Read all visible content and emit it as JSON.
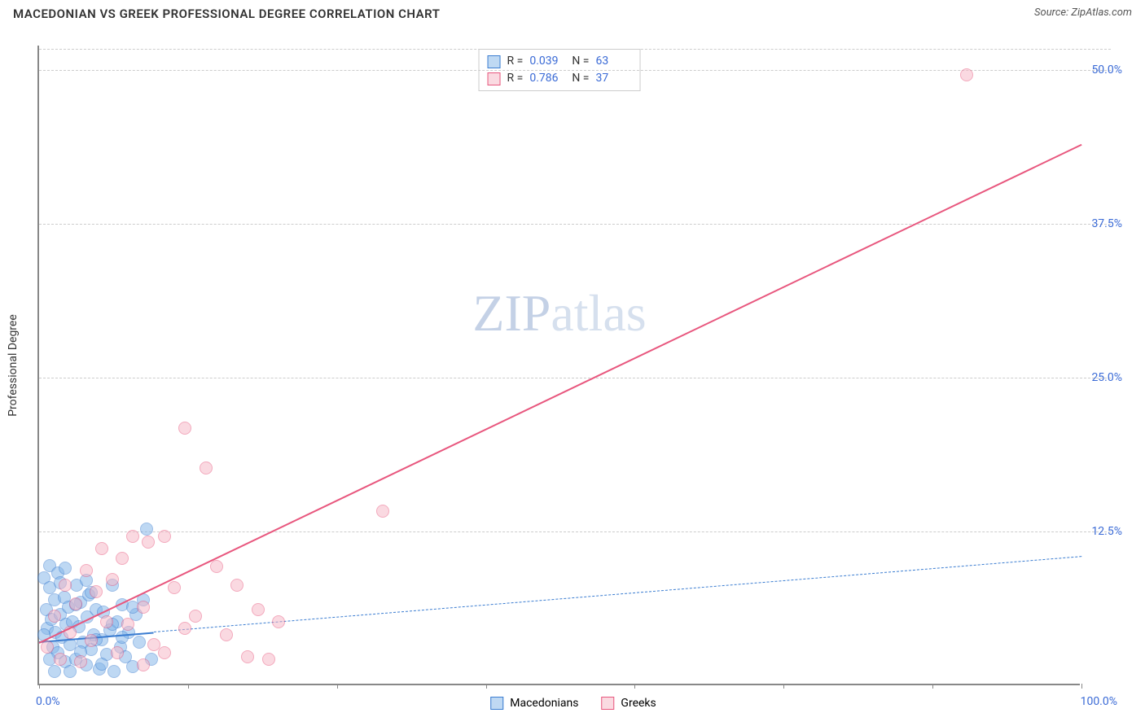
{
  "header": {
    "title": "MACEDONIAN VS GREEK PROFESSIONAL DEGREE CORRELATION CHART",
    "source": "Source: ZipAtlas.com"
  },
  "chart": {
    "type": "scatter",
    "y_axis_title": "Professional Degree",
    "xlim": [
      0,
      100
    ],
    "ylim": [
      0,
      52
    ],
    "xtick_positions": [
      0,
      14.3,
      28.6,
      42.9,
      57.1,
      71.4,
      85.7,
      100
    ],
    "x_axis_labels": {
      "min": "0.0%",
      "max": "100.0%"
    },
    "y_gridlines": [
      {
        "value": 12.5,
        "label": "12.5%"
      },
      {
        "value": 25.0,
        "label": "25.0%"
      },
      {
        "value": 37.5,
        "label": "37.5%"
      },
      {
        "value": 50.0,
        "label": "50.0%"
      }
    ],
    "grid_color": "#cccccc",
    "background_color": "#ffffff",
    "watermark": {
      "zip": "ZIP",
      "rest": "atlas"
    },
    "series": [
      {
        "name": "Macedonians",
        "fill_color": "#7fb3e8",
        "stroke_color": "#3b7dd1",
        "fill_opacity": 0.5,
        "stats": {
          "R": "0.039",
          "N": "63"
        },
        "trendline": {
          "x1": 0,
          "y1": 3.6,
          "x2": 100,
          "y2": 10.5,
          "color": "#3b7dd1",
          "dashed": true,
          "width": 1.5,
          "solid_until_x": 11
        },
        "points": [
          [
            0.5,
            8.6
          ],
          [
            0.7,
            6.0
          ],
          [
            0.8,
            4.5
          ],
          [
            1.0,
            7.8
          ],
          [
            1.2,
            5.2
          ],
          [
            1.3,
            3.0
          ],
          [
            1.5,
            6.8
          ],
          [
            1.6,
            4.2
          ],
          [
            1.8,
            2.5
          ],
          [
            2.0,
            5.6
          ],
          [
            2.2,
            3.8
          ],
          [
            2.4,
            7.0
          ],
          [
            2.5,
            1.8
          ],
          [
            2.6,
            4.8
          ],
          [
            2.8,
            6.2
          ],
          [
            3.0,
            3.2
          ],
          [
            3.2,
            5.0
          ],
          [
            3.5,
            2.0
          ],
          [
            3.6,
            8.0
          ],
          [
            3.8,
            4.6
          ],
          [
            4.0,
            6.6
          ],
          [
            4.2,
            3.4
          ],
          [
            4.5,
            1.5
          ],
          [
            4.6,
            5.4
          ],
          [
            4.8,
            7.2
          ],
          [
            5.0,
            2.8
          ],
          [
            5.2,
            4.0
          ],
          [
            5.5,
            6.0
          ],
          [
            5.8,
            1.2
          ],
          [
            6.0,
            3.6
          ],
          [
            6.2,
            5.8
          ],
          [
            6.5,
            2.4
          ],
          [
            6.8,
            4.4
          ],
          [
            7.0,
            8.0
          ],
          [
            7.2,
            1.0
          ],
          [
            7.5,
            5.0
          ],
          [
            7.8,
            3.0
          ],
          [
            8.0,
            6.4
          ],
          [
            8.3,
            2.2
          ],
          [
            8.6,
            4.2
          ],
          [
            9.0,
            1.4
          ],
          [
            9.3,
            5.6
          ],
          [
            9.6,
            3.4
          ],
          [
            10.0,
            6.8
          ],
          [
            10.3,
            12.6
          ],
          [
            10.8,
            2.0
          ],
          [
            1.0,
            9.6
          ],
          [
            1.8,
            9.0
          ],
          [
            0.5,
            4.0
          ],
          [
            1.0,
            2.0
          ],
          [
            2.0,
            8.2
          ],
          [
            3.0,
            1.0
          ],
          [
            4.0,
            2.6
          ],
          [
            5.0,
            7.4
          ],
          [
            6.0,
            1.6
          ],
          [
            7.0,
            4.8
          ],
          [
            8.0,
            3.8
          ],
          [
            9.0,
            6.2
          ],
          [
            1.5,
            1.0
          ],
          [
            2.5,
            9.4
          ],
          [
            3.5,
            6.4
          ],
          [
            4.5,
            8.4
          ],
          [
            5.5,
            3.6
          ]
        ]
      },
      {
        "name": "Greeks",
        "fill_color": "#f6b5c4",
        "stroke_color": "#e8577e",
        "fill_opacity": 0.5,
        "stats": {
          "R": "0.786",
          "N": "37"
        },
        "trendline": {
          "x1": 0,
          "y1": 3.5,
          "x2": 100,
          "y2": 44.0,
          "color": "#e8577e",
          "dashed": false,
          "width": 2
        },
        "points": [
          [
            0.8,
            3.0
          ],
          [
            1.5,
            5.5
          ],
          [
            2.0,
            2.0
          ],
          [
            2.5,
            8.0
          ],
          [
            3.0,
            4.2
          ],
          [
            3.5,
            6.5
          ],
          [
            4.0,
            1.8
          ],
          [
            4.5,
            9.2
          ],
          [
            5.0,
            3.5
          ],
          [
            5.5,
            7.5
          ],
          [
            6.0,
            11.0
          ],
          [
            6.5,
            5.0
          ],
          [
            7.0,
            8.5
          ],
          [
            7.5,
            2.5
          ],
          [
            8.0,
            10.2
          ],
          [
            8.5,
            4.8
          ],
          [
            9.0,
            12.0
          ],
          [
            10.0,
            6.2
          ],
          [
            10.5,
            11.5
          ],
          [
            11.0,
            3.2
          ],
          [
            12.0,
            12.0
          ],
          [
            13.0,
            7.8
          ],
          [
            14.0,
            20.8
          ],
          [
            15.0,
            5.5
          ],
          [
            16.0,
            17.5
          ],
          [
            17.0,
            9.5
          ],
          [
            18.0,
            4.0
          ],
          [
            19.0,
            8.0
          ],
          [
            20.0,
            2.2
          ],
          [
            21.0,
            6.0
          ],
          [
            22.0,
            2.0
          ],
          [
            23.0,
            5.0
          ],
          [
            12.0,
            2.5
          ],
          [
            14.0,
            4.5
          ],
          [
            33.0,
            14.0
          ],
          [
            10.0,
            1.5
          ],
          [
            89.0,
            49.5
          ]
        ]
      }
    ]
  },
  "stats_labels": {
    "R": "R =",
    "N": "N ="
  }
}
